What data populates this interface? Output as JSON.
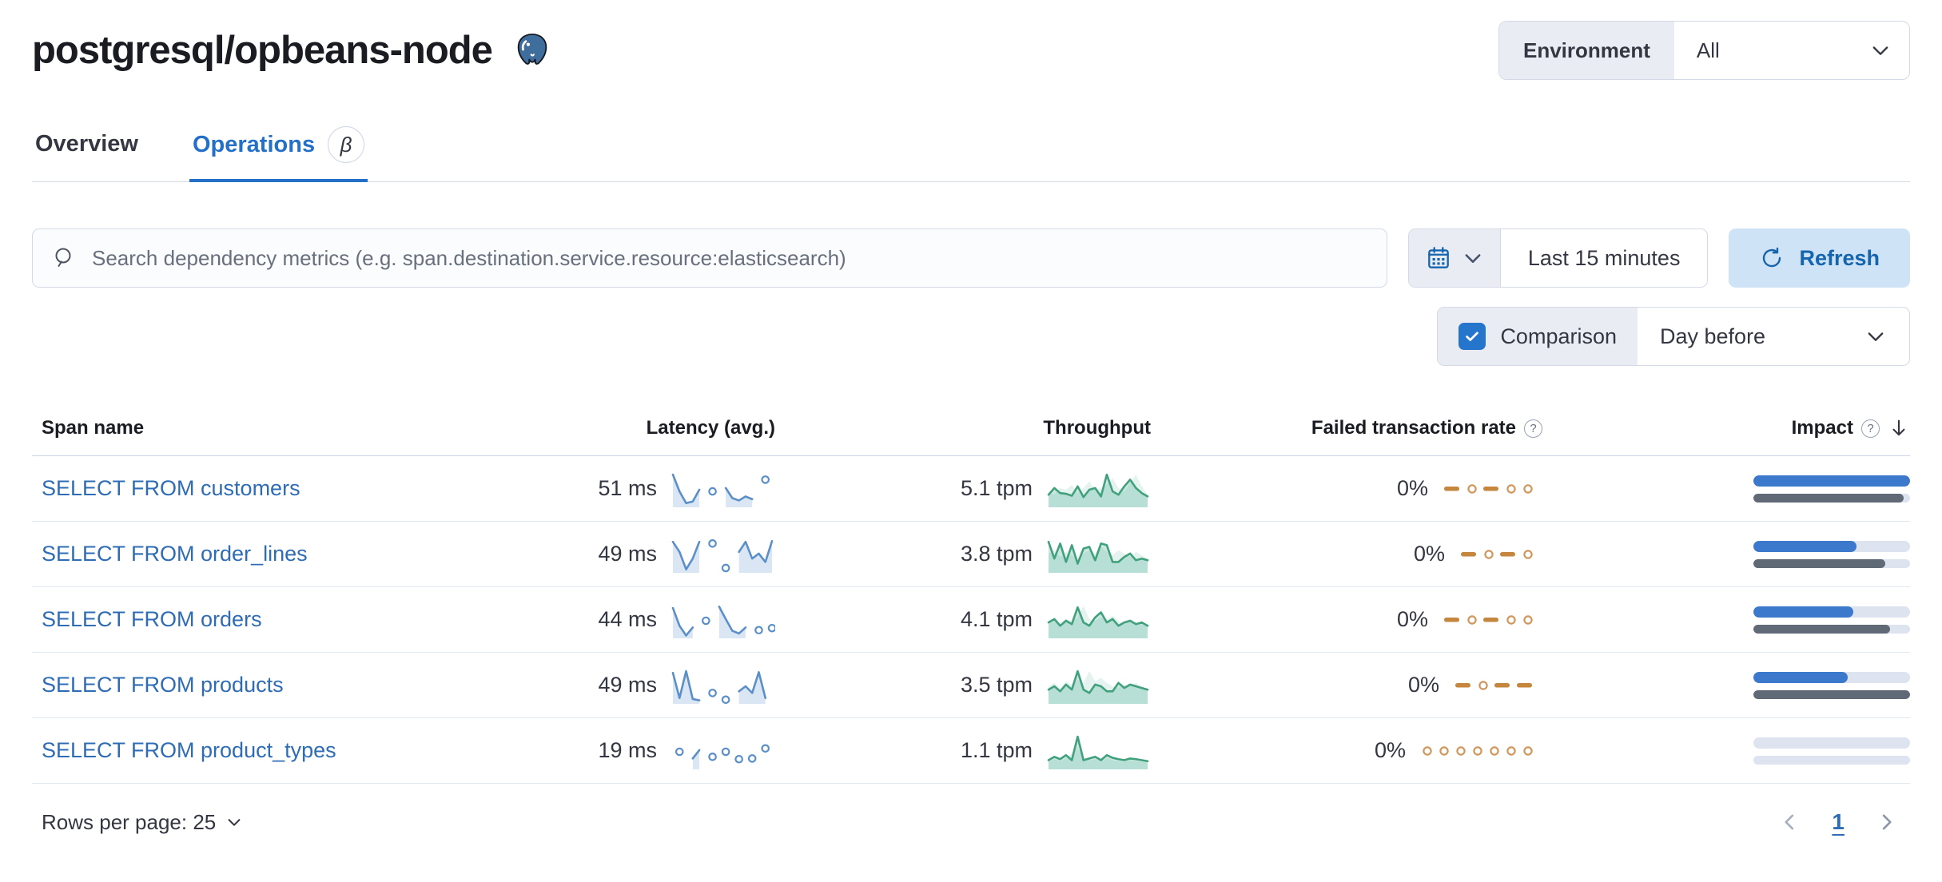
{
  "header": {
    "title": "postgresql/opbeans-node",
    "logo_icon": "postgresql-elephant"
  },
  "environment": {
    "label": "Environment",
    "value": "All"
  },
  "tabs": [
    {
      "label": "Overview",
      "active": false
    },
    {
      "label": "Operations",
      "active": true,
      "badge": "β"
    }
  ],
  "toolbar": {
    "search_placeholder": "Search dependency metrics (e.g. span.destination.service.resource:elasticsearch)",
    "time_range": "Last 15 minutes",
    "refresh_label": "Refresh",
    "comparison": {
      "label": "Comparison",
      "checked": true,
      "value": "Day before"
    }
  },
  "table": {
    "columns": {
      "span_name": "Span name",
      "latency": "Latency (avg.)",
      "throughput": "Throughput",
      "failed_rate": "Failed transaction rate",
      "impact": "Impact"
    },
    "rows": [
      {
        "span_name": "SELECT FROM customers",
        "latency": "51 ms",
        "throughput": "5.1 tpm",
        "failed_rate": "0%",
        "impact_pct": 100,
        "impact_prev_pct": 96,
        "latency_spark": {
          "values": [
            0.95,
            0.45,
            0.1,
            0.15,
            0.5,
            null,
            0.45,
            null,
            0.55,
            0.25,
            0.18,
            0.3,
            0.22,
            null,
            0.8,
            null
          ]
        },
        "throughput_spark": {
          "values": [
            0.35,
            0.55,
            0.4,
            0.38,
            0.32,
            0.6,
            0.28,
            0.5,
            0.55,
            0.3,
            0.95,
            0.45,
            0.35,
            0.6,
            0.8,
            0.55,
            0.4,
            0.3
          ],
          "prev": [
            0.45,
            0.35,
            0.55,
            0.5,
            0.65,
            0.4,
            0.55,
            0.75,
            0.5,
            0.55,
            0.65,
            0.85,
            0.55,
            0.45,
            0.7,
            0.95,
            0.6,
            0.35
          ]
        },
        "failed_spark": [
          "d",
          "o",
          "d",
          "o",
          "o"
        ]
      },
      {
        "span_name": "SELECT FROM order_lines",
        "latency": "49 ms",
        "throughput": "3.8 tpm",
        "failed_rate": "0%",
        "impact_pct": 66,
        "impact_prev_pct": 84,
        "latency_spark": {
          "values": [
            0.9,
            0.6,
            0.08,
            0.4,
            0.9,
            null,
            0.85,
            null,
            0.12,
            null,
            0.6,
            0.9,
            0.4,
            0.55,
            0.3,
            0.92
          ]
        },
        "throughput_spark": {
          "values": [
            0.9,
            0.4,
            0.85,
            0.3,
            0.8,
            0.25,
            0.7,
            0.75,
            0.35,
            0.85,
            0.8,
            0.3,
            0.3,
            0.45,
            0.55,
            0.35,
            0.4,
            0.35
          ],
          "prev": [
            0.55,
            0.65,
            0.45,
            0.6,
            0.5,
            0.4,
            0.55,
            0.65,
            0.55,
            0.75,
            0.6,
            0.5,
            0.65,
            0.55,
            0.45,
            0.6,
            0.5,
            0.4
          ]
        },
        "failed_spark": [
          "d",
          "o",
          "d",
          "o"
        ]
      },
      {
        "span_name": "SELECT FROM orders",
        "latency": "44 ms",
        "throughput": "4.1 tpm",
        "failed_rate": "0%",
        "impact_pct": 64,
        "impact_prev_pct": 87,
        "latency_spark": {
          "values": [
            0.88,
            0.35,
            0.06,
            0.3,
            null,
            0.5,
            null,
            0.92,
            0.55,
            0.2,
            0.12,
            0.3,
            null,
            0.22,
            null,
            0.28
          ]
        },
        "throughput_spark": {
          "values": [
            0.45,
            0.55,
            0.35,
            0.5,
            0.4,
            0.9,
            0.45,
            0.35,
            0.6,
            0.75,
            0.45,
            0.55,
            0.35,
            0.45,
            0.5,
            0.4,
            0.45,
            0.35
          ],
          "prev": [
            0.4,
            0.5,
            0.45,
            0.55,
            0.5,
            0.6,
            0.95,
            0.55,
            0.5,
            0.6,
            0.55,
            0.65,
            0.5,
            0.4,
            0.55,
            0.45,
            0.4,
            0.35
          ]
        },
        "failed_spark": [
          "d",
          "o",
          "d",
          "o",
          "o"
        ]
      },
      {
        "span_name": "SELECT FROM products",
        "latency": "49 ms",
        "throughput": "3.5 tpm",
        "failed_rate": "0%",
        "impact_pct": 60,
        "impact_prev_pct": 100,
        "latency_spark": {
          "values": [
            0.9,
            0.15,
            0.95,
            0.12,
            0.08,
            null,
            0.3,
            null,
            0.1,
            null,
            0.35,
            0.5,
            0.3,
            0.92,
            0.15,
            null
          ]
        },
        "throughput_spark": {
          "values": [
            0.4,
            0.5,
            0.35,
            0.55,
            0.4,
            0.95,
            0.4,
            0.3,
            0.55,
            0.5,
            0.35,
            0.35,
            0.6,
            0.45,
            0.55,
            0.5,
            0.45,
            0.4
          ],
          "prev": [
            0.5,
            0.6,
            0.45,
            0.65,
            0.55,
            0.7,
            0.6,
            0.95,
            0.65,
            0.75,
            0.6,
            0.5,
            0.45,
            0.55,
            0.5,
            0.6,
            0.45,
            0.4
          ]
        },
        "failed_spark": [
          "d",
          "o",
          "d",
          "d"
        ]
      },
      {
        "span_name": "SELECT FROM product_types",
        "latency": "19 ms",
        "throughput": "1.1 tpm",
        "failed_rate": "0%",
        "impact_pct": 0,
        "impact_prev_pct": 0,
        "latency_spark": {
          "values": [
            null,
            0.5,
            null,
            0.3,
            0.55,
            null,
            0.35,
            null,
            0.5,
            null,
            0.28,
            null,
            0.3,
            null,
            0.6,
            null
          ]
        },
        "throughput_spark": {
          "values": [
            0.25,
            0.35,
            0.28,
            0.4,
            0.25,
            0.95,
            0.25,
            0.3,
            0.35,
            0.25,
            0.4,
            0.32,
            0.28,
            0.25,
            0.3,
            0.28,
            0.25,
            0.22
          ],
          "prev": [
            0.2,
            0.28,
            0.22,
            0.3,
            0.45,
            0.6,
            0.3,
            0.25,
            0.28,
            0.22,
            0.3,
            0.25,
            0.22,
            0.2,
            0.25,
            0.22,
            0.2,
            0.18
          ]
        },
        "failed_spark": [
          "o",
          "o",
          "o",
          "o",
          "o",
          "o",
          "o"
        ]
      }
    ]
  },
  "pagination": {
    "rows_per_page": "Rows per page: 25",
    "current_page": "1"
  },
  "colors": {
    "accent_blue": "#2470c8",
    "link_blue": "#2e6cb5",
    "latency_spark": "#5b8fc7",
    "latency_fill": "#dbe6f4",
    "throughput_spark": "#41a17d",
    "failed_spark": "#c5863e",
    "failed_circle": "#cf975c",
    "impact_bar": "#3c78cb",
    "impact_prev_bar": "#606a77"
  }
}
